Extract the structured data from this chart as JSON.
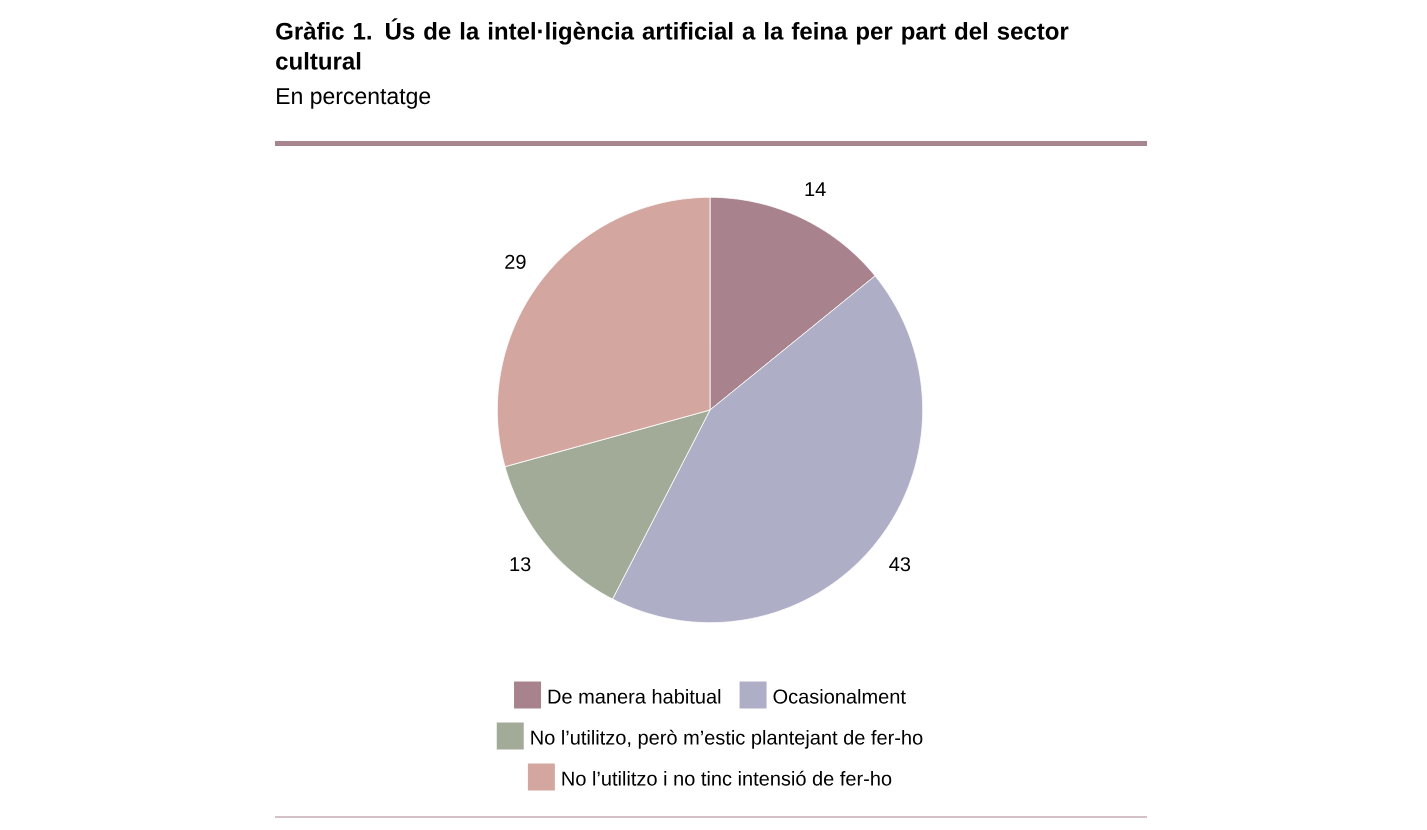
{
  "chart_data": {
    "type": "pie",
    "title": "Gràfic 1. Ús de la intel·ligència artificial a la feina per part del sector cultural",
    "subtitle": "En percentatge",
    "categories": [
      "De manera habitual",
      "Ocasionalment",
      "No l’utilitzo, però m’estic plantejant de fer-ho",
      "No l’utilitzo i no tinc intensió de fer-ho"
    ],
    "values": [
      14,
      43,
      13,
      29
    ],
    "colors": [
      "#a8828c",
      "#aeaec6",
      "#a2ab98",
      "#d3a6a0"
    ],
    "data_labels": true,
    "legend": "bottom"
  }
}
